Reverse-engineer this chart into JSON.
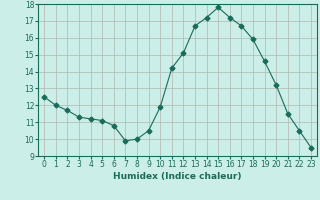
{
  "x": [
    0,
    1,
    2,
    3,
    4,
    5,
    6,
    7,
    8,
    9,
    10,
    11,
    12,
    13,
    14,
    15,
    16,
    17,
    18,
    19,
    20,
    21,
    22,
    23
  ],
  "y": [
    12.5,
    12.0,
    11.7,
    11.3,
    11.2,
    11.1,
    10.8,
    9.9,
    10.0,
    10.5,
    11.9,
    14.2,
    15.1,
    16.7,
    17.2,
    17.8,
    17.2,
    16.7,
    15.9,
    14.6,
    13.2,
    11.5,
    10.5,
    9.5
  ],
  "line_color": "#1a6b5a",
  "marker": "D",
  "marker_size": 2.5,
  "bg_color": "#cceee8",
  "grid_color": "#b0b8b0",
  "xlabel": "Humidex (Indice chaleur)",
  "xlim": [
    -0.5,
    23.5
  ],
  "ylim": [
    9,
    18
  ],
  "yticks": [
    9,
    10,
    11,
    12,
    13,
    14,
    15,
    16,
    17,
    18
  ],
  "xticks": [
    0,
    1,
    2,
    3,
    4,
    5,
    6,
    7,
    8,
    9,
    10,
    11,
    12,
    13,
    14,
    15,
    16,
    17,
    18,
    19,
    20,
    21,
    22,
    23
  ],
  "tick_fontsize": 5.5,
  "label_fontsize": 6.5
}
